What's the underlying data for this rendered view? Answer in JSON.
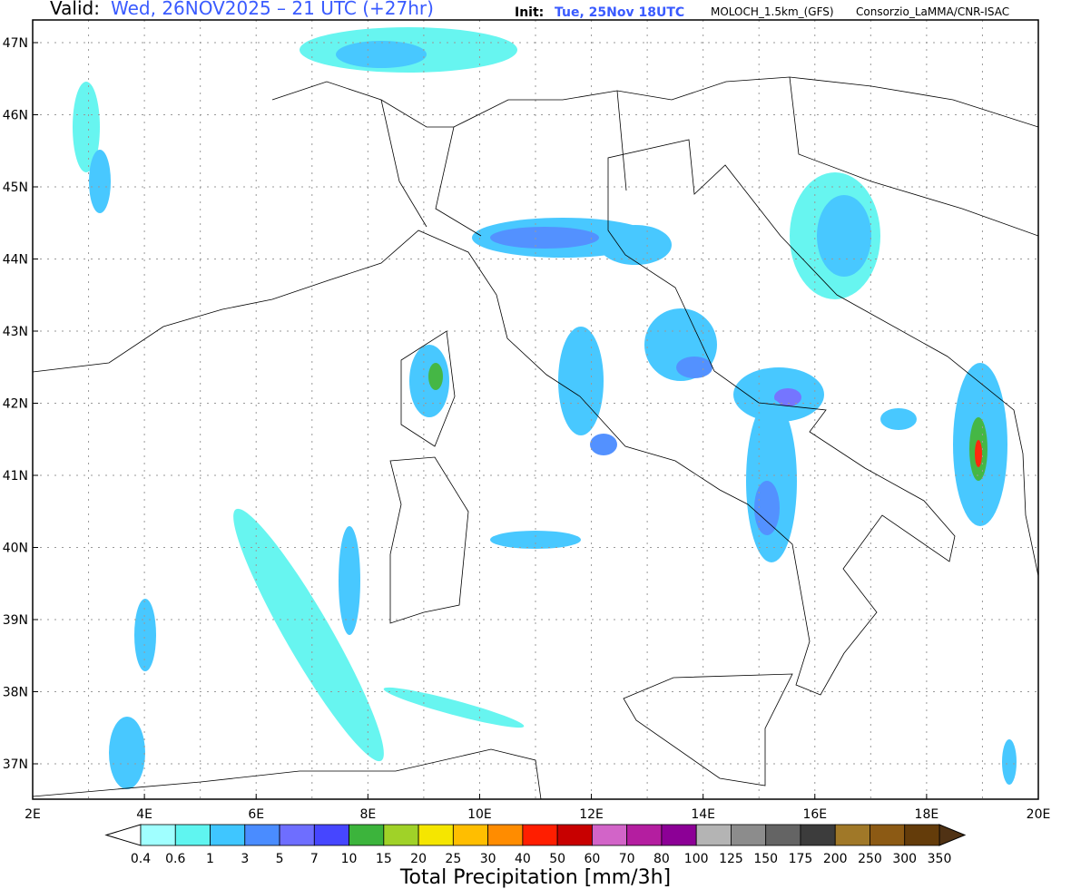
{
  "header": {
    "valid_label": "Valid:",
    "valid_time": "Wed, 26NOV2025 – 21 UTC (+27hr)",
    "init_label": "Init:",
    "init_time": "Tue, 25Nov 18UTC",
    "model": "MOLOCH_1.5km_(GFS)",
    "credit": "Consorzio_LaMMA/CNR-ISAC"
  },
  "map": {
    "lat_labels": [
      "47N",
      "46N",
      "45N",
      "44N",
      "43N",
      "42N",
      "41N",
      "40N",
      "39N",
      "38N",
      "37N"
    ],
    "lon_labels": [
      "2E",
      "4E",
      "6E",
      "8E",
      "10E",
      "12E",
      "14E",
      "16E",
      "18E",
      "20E"
    ]
  },
  "colorbar": {
    "levels": [
      "0.4",
      "0.6",
      "1",
      "3",
      "5",
      "7",
      "10",
      "15",
      "20",
      "25",
      "30",
      "40",
      "50",
      "60",
      "70",
      "80",
      "100",
      "125",
      "150",
      "175",
      "200",
      "250",
      "300",
      "350"
    ],
    "colors": [
      "#a0ffff",
      "#5ff5f0",
      "#3fc6ff",
      "#4a8cff",
      "#6e6eff",
      "#4646ff",
      "#3cb43c",
      "#a0d228",
      "#f5e600",
      "#ffbe00",
      "#ff8c00",
      "#ff1e00",
      "#c80000",
      "#d264c8",
      "#b41ea0",
      "#8c0096",
      "#b4b4b4",
      "#8c8c8c",
      "#646464",
      "#3c3c3c",
      "#a07828",
      "#8c5a14",
      "#643c0a"
    ],
    "under_color": "#ffffff",
    "over_color": "#503214",
    "title": "Total Precipitation [mm/3h]"
  }
}
